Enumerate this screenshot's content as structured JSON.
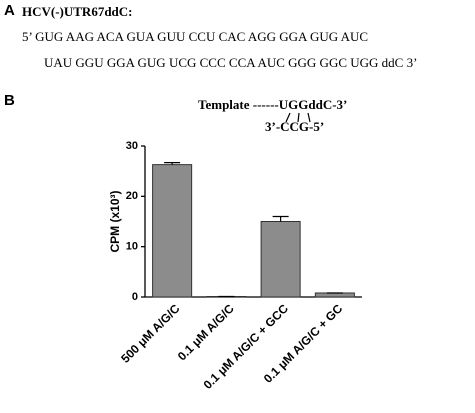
{
  "panel_a": {
    "label": "A",
    "title": "HCV(-)UTR67ddC:",
    "lines": [
      "5’ GUG AAG ACA GUA GUU CCU CAC AGG GGA GUG AUC",
      "UAU GGU GGA GUG UCG CCC CCA AUC GGG GGC UGG ddC 3’"
    ]
  },
  "panel_b": {
    "label": "B",
    "template": "Template ------UGGddC-3’",
    "primer": "3’-CCG-5’"
  },
  "chart_data": {
    "type": "bar",
    "ylabel": "CPM (x10³)",
    "categories": [
      "500 μM A/G/C",
      "0.1 μM A/G/C",
      "0.1 μM A/G/C + GCC",
      "0.1 μM A/G/C + GC"
    ],
    "values": [
      26.3,
      0.1,
      15,
      0.8
    ],
    "errors": [
      0.4,
      0,
      1,
      0
    ],
    "color": "#8c8c8c",
    "ylim": [
      0,
      30
    ],
    "yticks": [
      0,
      10,
      20,
      30
    ]
  }
}
